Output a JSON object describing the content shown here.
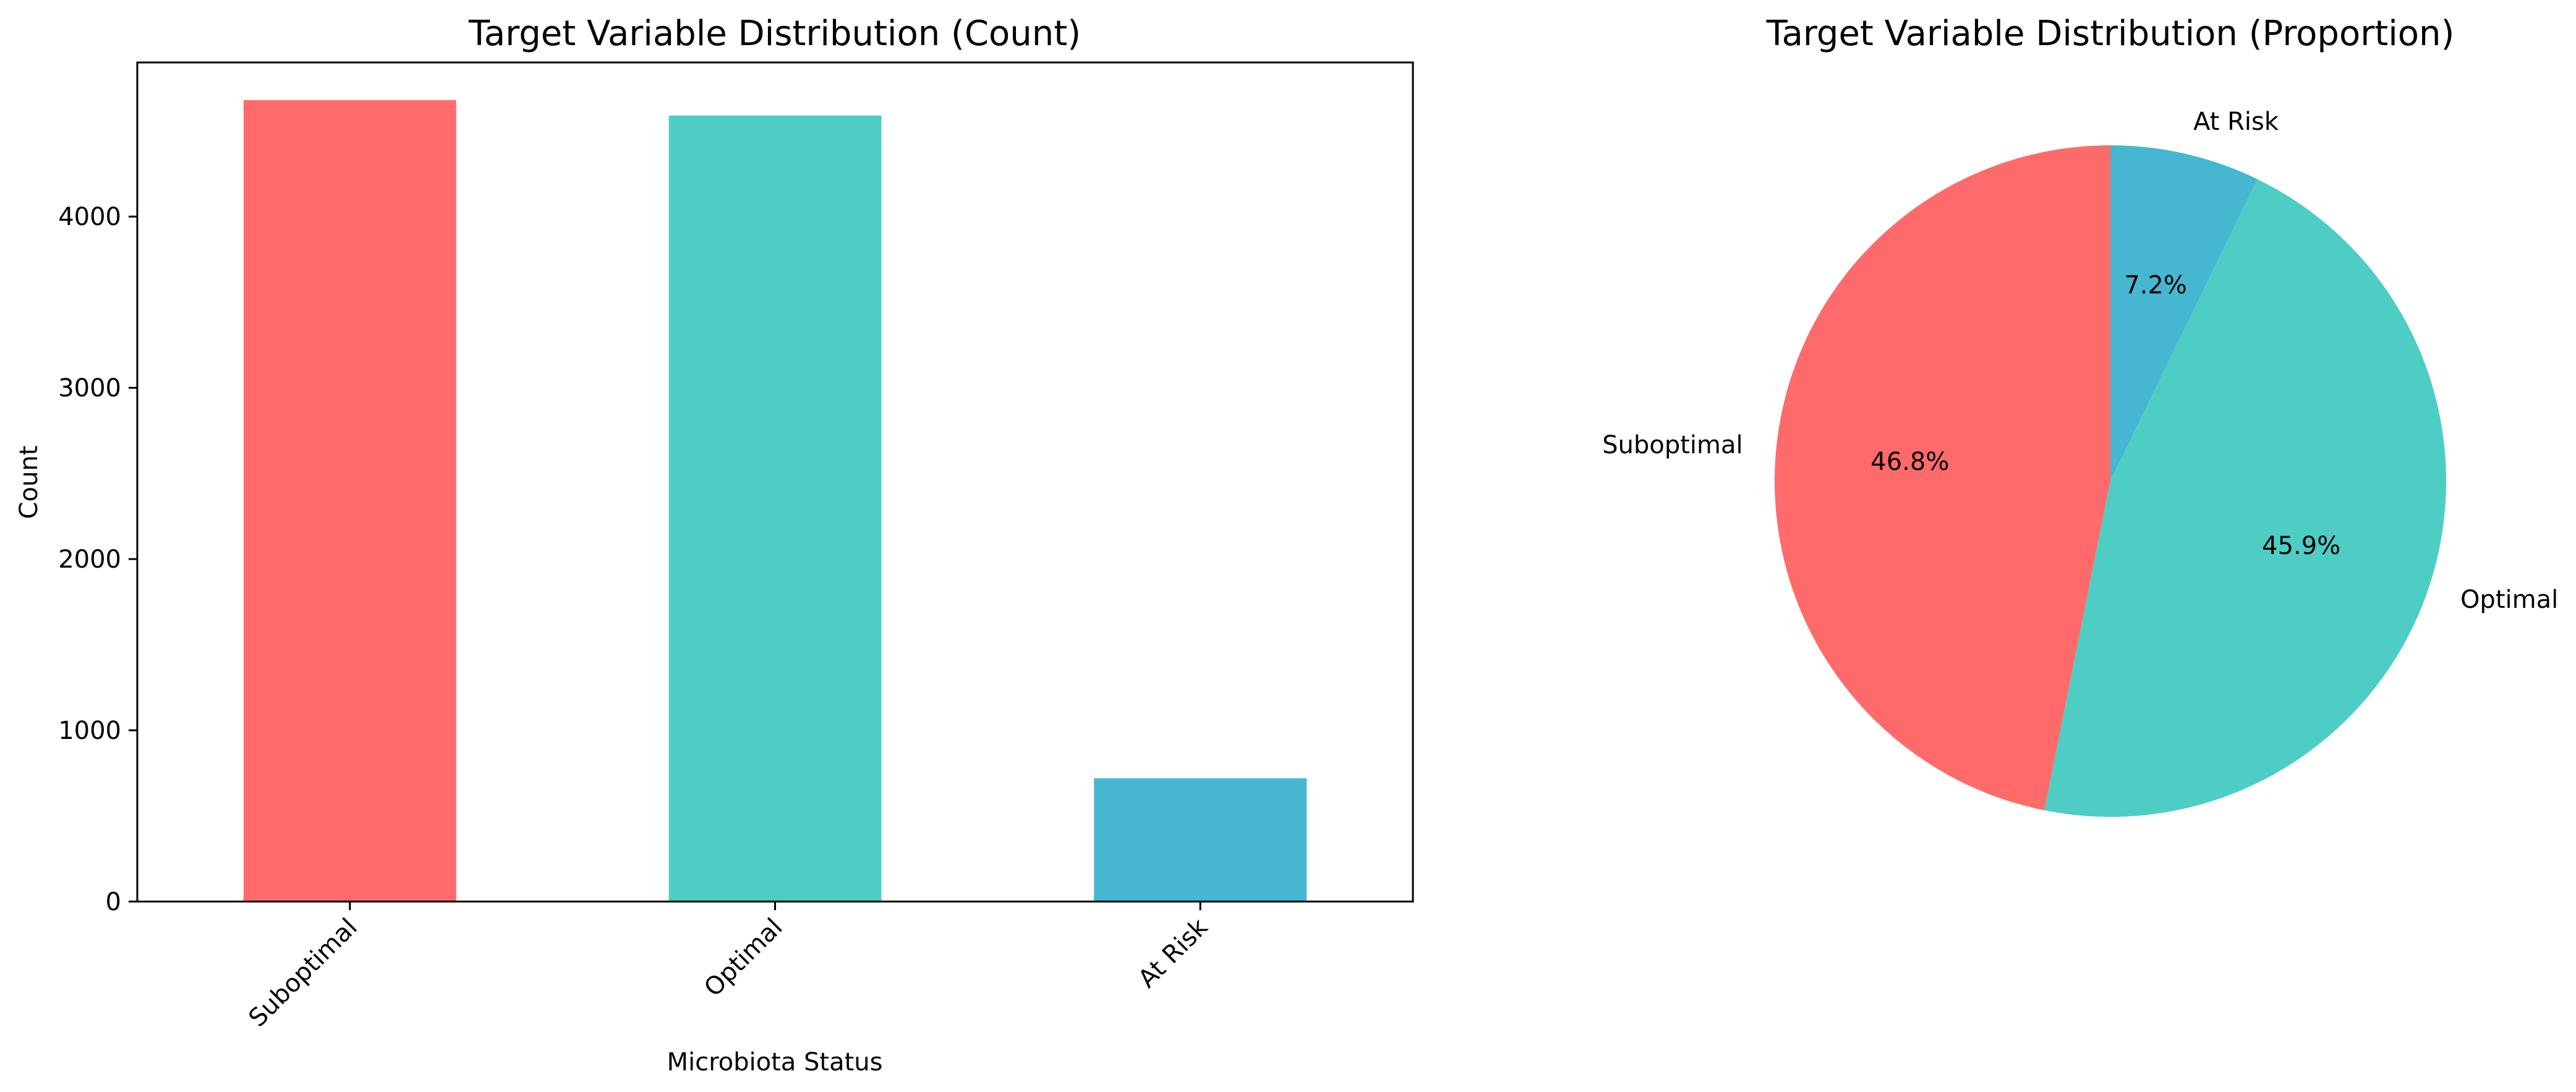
{
  "chart_data": [
    {
      "type": "bar",
      "title": "Target Variable Distribution (Count)",
      "xlabel": "Microbiota Status",
      "ylabel": "Count",
      "categories": [
        "Suboptimal",
        "Optimal",
        "At Risk"
      ],
      "values": [
        4680,
        4590,
        720
      ],
      "colors": [
        "#ff6b6b",
        "#4ecdc4",
        "#45b7d1"
      ],
      "ylim": [
        0,
        4900
      ],
      "yticks": [
        0,
        1000,
        2000,
        3000,
        4000
      ],
      "ytick_labels": [
        "0",
        "1000",
        "2000",
        "3000",
        "4000"
      ],
      "grid": false
    },
    {
      "type": "pie",
      "title": "Target Variable Distribution (Proportion)",
      "labels": [
        "Suboptimal",
        "Optimal",
        "At Risk"
      ],
      "values": [
        46.8,
        45.9,
        7.2
      ],
      "pct_labels": [
        "46.8%",
        "45.9%",
        "7.2%"
      ],
      "colors": [
        "#ff6b6b",
        "#4ecdc4",
        "#45b7d1"
      ]
    }
  ]
}
